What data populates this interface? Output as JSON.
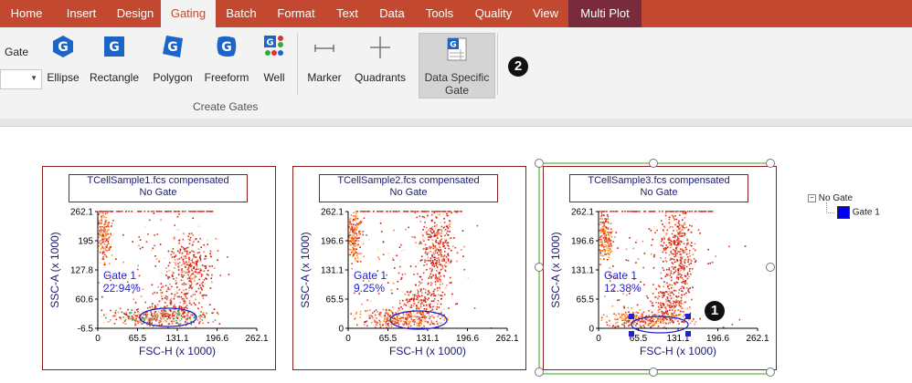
{
  "tabs": [
    {
      "label": "Home"
    },
    {
      "label": "Insert"
    },
    {
      "label": "Design"
    },
    {
      "label": "Gating"
    },
    {
      "label": "Batch"
    },
    {
      "label": "Format"
    },
    {
      "label": "Text"
    },
    {
      "label": "Data"
    },
    {
      "label": "Tools"
    },
    {
      "label": "Quality"
    },
    {
      "label": "View"
    },
    {
      "label": "Multi Plot"
    }
  ],
  "ribbon": {
    "gate_label": "Gate",
    "buttons": {
      "ellipse": "Ellipse",
      "rectangle": "Rectangle",
      "polygon": "Polygon",
      "freeform": "Freeform",
      "well": "Well",
      "marker": "Marker",
      "quadrants": "Quadrants",
      "data_specific_1": "Data Specific",
      "data_specific_2": "Gate"
    },
    "group_label": "Create Gates",
    "badge": "2"
  },
  "plots": [
    {
      "title": "TCellSample1.fcs compensated",
      "subtitle": "No Gate",
      "gate_name": "Gate 1",
      "gate_pct": "22.94%",
      "y_ticks": [
        "262.1",
        "195",
        "127.8",
        "60.6",
        "-6.5"
      ],
      "x_ticks": [
        "0",
        "65.5",
        "131.1",
        "196.6",
        "262.1"
      ],
      "xlabel": "FSC-H (x 1000)",
      "ylabel": "SSC-A (x 1000)"
    },
    {
      "title": "TCellSample2.fcs compensated",
      "subtitle": "No Gate",
      "gate_name": "Gate 1",
      "gate_pct": "9.25%",
      "y_ticks": [
        "262.1",
        "196.6",
        "131.1",
        "65.5",
        "0"
      ],
      "x_ticks": [
        "0",
        "65.5",
        "131.1",
        "196.6",
        "262.1"
      ],
      "xlabel": "FSC-H (x 1000)",
      "ylabel": "SSC-A (x 1000)"
    },
    {
      "title": "TCellSample3.fcs compensated",
      "subtitle": "No Gate",
      "gate_name": "Gate 1",
      "gate_pct": "12.38%",
      "y_ticks": [
        "262.1",
        "196.6",
        "131.1",
        "65.5",
        "0"
      ],
      "x_ticks": [
        "0",
        "65.5",
        "131.1",
        "196.6",
        "262.1"
      ],
      "xlabel": "FSC-H (x 1000)",
      "ylabel": "SSC-A (x 1000)"
    }
  ],
  "plot_badge": "1",
  "tree": {
    "root": "No Gate",
    "child": "Gate 1",
    "child_color": "#0000ee"
  },
  "colors": {
    "accent": "#c2492f",
    "multi_plot": "#7a2a3d",
    "gate_blue": "#2222cc",
    "plot_border": "#8b1c1c",
    "selection": "#9fcf8f"
  }
}
